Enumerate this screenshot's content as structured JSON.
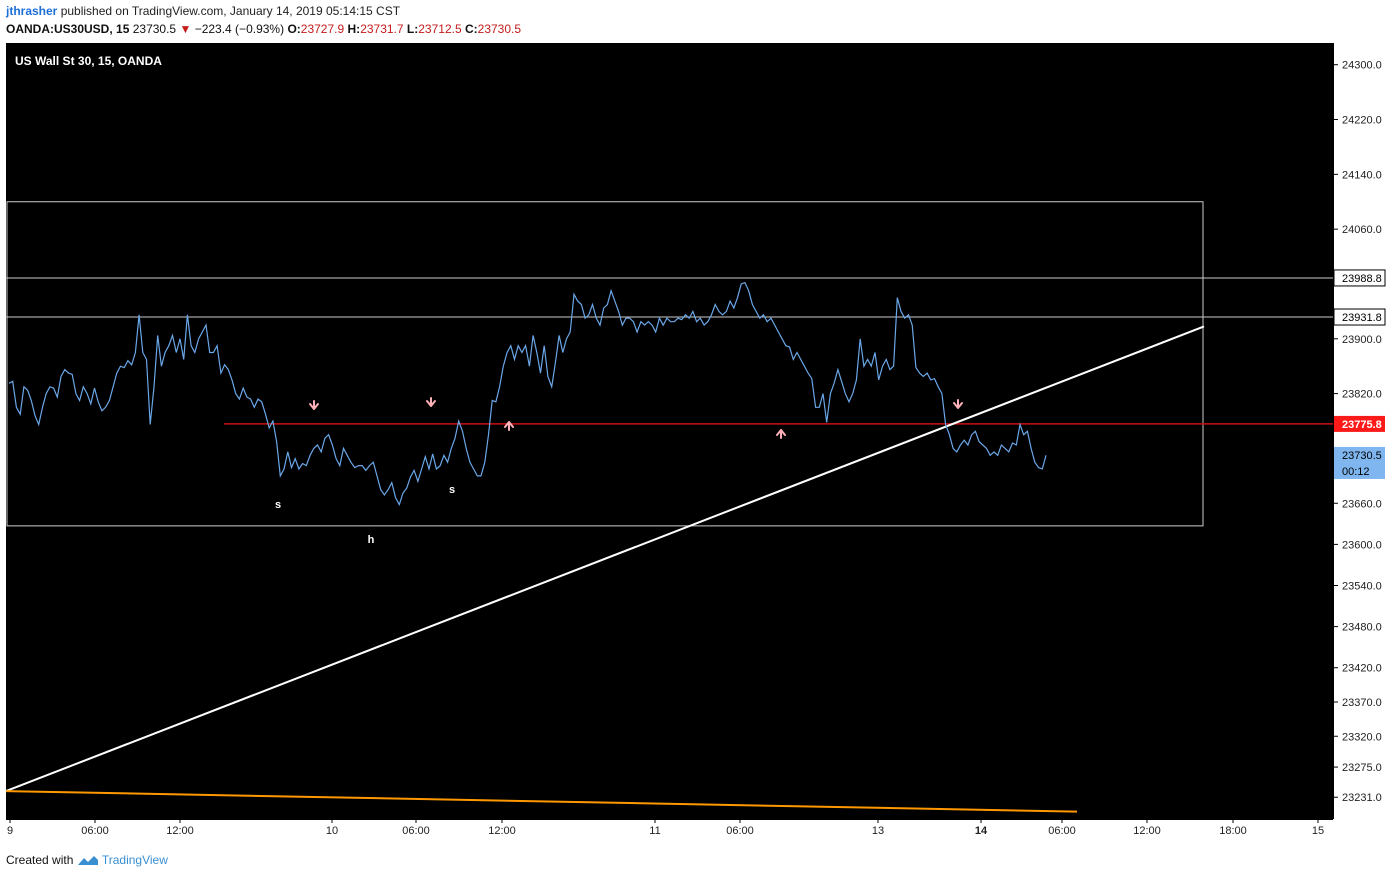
{
  "header": {
    "username": "jthrasher",
    "published_text": "published on TradingView.com, January 14, 2019 05:14:15 CST",
    "symbol": "OANDA:US30USD, 15",
    "last": "23730.5",
    "change_arrow": "▼",
    "change": "−223.4 (−0.93%)",
    "o_label": "O:",
    "o_value": "23727.9",
    "h_label": "H:",
    "h_value": "23731.7",
    "l_label": "L:",
    "l_value": "23712.5",
    "c_label": "C:",
    "c_value": "23730.5"
  },
  "footer": {
    "created_with": "Created with",
    "brand": "TradingView"
  },
  "chart_data": {
    "type": "line",
    "title": "US Wall St 30, 15, OANDA",
    "background": "#000000",
    "line_color": "#6aa7e8",
    "y_axis": {
      "range": [
        23208,
        24320
      ],
      "ticks": [
        "24300.0",
        "24220.0",
        "24140.0",
        "24060.0",
        "23900.0",
        "23820.0",
        "23660.0",
        "23600.0",
        "23540.0",
        "23480.0",
        "23420.0",
        "23370.0",
        "23320.0",
        "23275.0",
        "23231.0"
      ]
    },
    "x_axis": {
      "labels": [
        "9",
        "06:00",
        "12:00",
        "10",
        "06:00",
        "12:00",
        "11",
        "06:00",
        "13",
        "14",
        "06:00",
        "12:00",
        "18:00",
        "15"
      ],
      "bold_labels": [
        "14"
      ]
    },
    "price_labels": [
      {
        "value": "23988.8",
        "style": "white"
      },
      {
        "value": "23931.8",
        "style": "white"
      },
      {
        "value": "23775.8",
        "style": "red"
      },
      {
        "value": "23730.5",
        "style": "blue"
      },
      {
        "value": "00:12",
        "style": "blue"
      }
    ],
    "horizontal_lines": [
      {
        "price": 23988.8,
        "color": "#cccccc"
      },
      {
        "price": 23931.8,
        "color": "#cccccc"
      },
      {
        "price": 23775.8,
        "color": "#cc1010"
      }
    ],
    "rectangle": {
      "price_top": 24100,
      "price_bottom": 23627
    },
    "trendlines": [
      {
        "name": "white-uptrend",
        "color": "#ffffff",
        "from_price": 23240,
        "to_price": 23918
      },
      {
        "name": "orange-downtrend",
        "color": "#ff9800",
        "from_price": 23240,
        "to_price": 23210
      }
    ],
    "annotations": [
      "s",
      "h",
      "s"
    ],
    "series": [
      {
        "name": "US30USD close",
        "values": [
          23835,
          23838,
          23800,
          23790,
          23830,
          23825,
          23810,
          23788,
          23775,
          23800,
          23820,
          23830,
          23828,
          23815,
          23845,
          23855,
          23850,
          23848,
          23820,
          23810,
          23830,
          23820,
          23805,
          23828,
          23808,
          23795,
          23800,
          23810,
          23830,
          23850,
          23860,
          23858,
          23868,
          23862,
          23880,
          23935,
          23880,
          23870,
          23775,
          23830,
          23905,
          23860,
          23880,
          23890,
          23905,
          23880,
          23900,
          23870,
          23935,
          23890,
          23880,
          23900,
          23910,
          23920,
          23880,
          23880,
          23890,
          23850,
          23862,
          23855,
          23840,
          23820,
          23812,
          23828,
          23815,
          23812,
          23800,
          23812,
          23808,
          23790,
          23770,
          23780,
          23750,
          23700,
          23710,
          23735,
          23712,
          23725,
          23710,
          23718,
          23715,
          23730,
          23740,
          23745,
          23735,
          23755,
          23760,
          23745,
          23725,
          23715,
          23740,
          23730,
          23720,
          23712,
          23715,
          23715,
          23708,
          23715,
          23720,
          23700,
          23680,
          23672,
          23680,
          23690,
          23668,
          23658,
          23675,
          23682,
          23698,
          23708,
          23692,
          23710,
          23728,
          23710,
          23732,
          23710,
          23715,
          23730,
          23720,
          23740,
          23755,
          23780,
          23765,
          23740,
          23720,
          23710,
          23700,
          23700,
          23720,
          23760,
          23810,
          23808,
          23830,
          23860,
          23880,
          23890,
          23870,
          23890,
          23880,
          23890,
          23860,
          23905,
          23880,
          23850,
          23890,
          23845,
          23830,
          23865,
          23905,
          23880,
          23900,
          23910,
          23965,
          23955,
          23950,
          23930,
          23935,
          23950,
          23930,
          23920,
          23945,
          23950,
          23970,
          23955,
          23940,
          23920,
          23930,
          23930,
          23925,
          23910,
          23925,
          23920,
          23925,
          23920,
          23910,
          23930,
          23920,
          23930,
          23925,
          23925,
          23930,
          23928,
          23935,
          23930,
          23940,
          23925,
          23930,
          23920,
          23925,
          23935,
          23950,
          23940,
          23935,
          23940,
          23955,
          23945,
          23960,
          23980,
          23982,
          23970,
          23950,
          23940,
          23930,
          23935,
          23925,
          23930,
          23920,
          23910,
          23900,
          23890,
          23888,
          23870,
          23880,
          23870,
          23860,
          23850,
          23842,
          23800,
          23800,
          23820,
          23778,
          23820,
          23835,
          23855,
          23838,
          23820,
          23808,
          23820,
          23840,
          23900,
          23860,
          23870,
          23860,
          23880,
          23840,
          23860,
          23870,
          23855,
          23860,
          23960,
          23940,
          23930,
          23935,
          23920,
          23858,
          23850,
          23845,
          23850,
          23840,
          23842,
          23830,
          23820,
          23775,
          23760,
          23740,
          23735,
          23745,
          23752,
          23745,
          23760,
          23765,
          23750,
          23745,
          23740,
          23730,
          23735,
          23730,
          23745,
          23740,
          23735,
          23748,
          23745,
          23775,
          23760,
          23765,
          23740,
          23720,
          23712,
          23710,
          23730
        ]
      }
    ]
  }
}
